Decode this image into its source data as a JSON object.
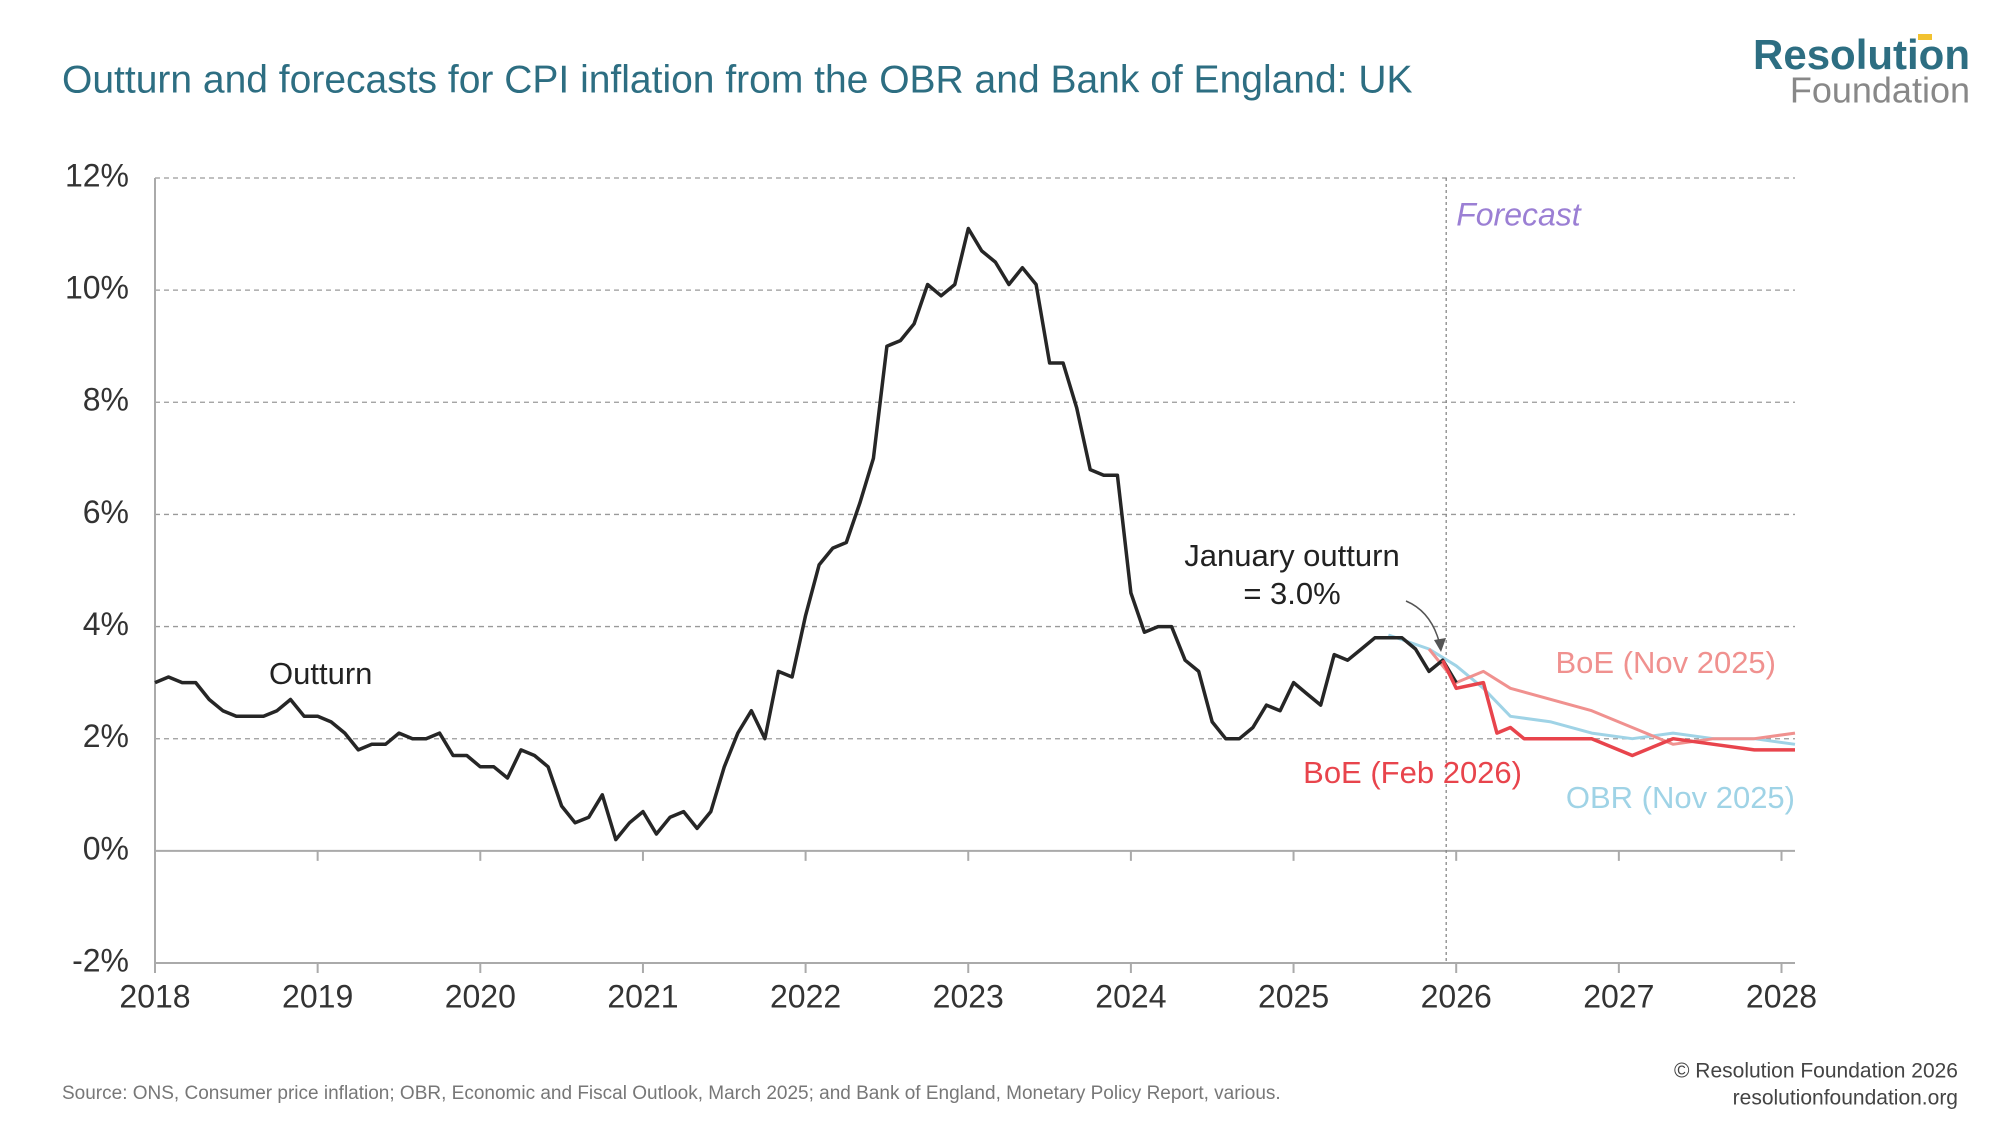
{
  "header": {
    "logo": [
      "Resolution",
      "Foundation"
    ]
  },
  "chart_data": {
    "type": "line",
    "title": "Outturn and forecasts for CPI inflation from the OBR and Bank of England: UK",
    "xlim": [
      2018,
      2028.083
    ],
    "xticks": [
      2018,
      2019,
      2020,
      2021,
      2022,
      2023,
      2024,
      2025,
      2026,
      2027,
      2028
    ],
    "ylim": [
      -2,
      12
    ],
    "yticks": [
      {
        "value": -2,
        "label": "-2%"
      },
      {
        "value": 0,
        "label": "0%"
      },
      {
        "value": 2,
        "label": "2%"
      },
      {
        "value": 4,
        "label": "4%"
      },
      {
        "value": 6,
        "label": "6%"
      },
      {
        "value": 8,
        "label": "8%"
      },
      {
        "value": 10,
        "label": "10%"
      },
      {
        "value": 12,
        "label": "12%"
      }
    ],
    "grid": true,
    "forecast_label": "Forecast",
    "annotation": [
      "January outturn",
      "= 3.0%"
    ],
    "series": [
      {
        "name": "Outturn",
        "color": "#262626",
        "x": [
          2018,
          2018.083,
          2018.167,
          2018.25,
          2018.333,
          2018.417,
          2018.5,
          2018.583,
          2018.667,
          2018.75,
          2018.833,
          2018.917,
          2019,
          2019.083,
          2019.167,
          2019.25,
          2019.333,
          2019.417,
          2019.5,
          2019.583,
          2019.667,
          2019.75,
          2019.833,
          2019.917,
          2020,
          2020.083,
          2020.167,
          2020.25,
          2020.333,
          2020.417,
          2020.5,
          2020.583,
          2020.667,
          2020.75,
          2020.833,
          2020.917,
          2021,
          2021.083,
          2021.167,
          2021.25,
          2021.333,
          2021.417,
          2021.5,
          2021.583,
          2021.667,
          2021.75,
          2021.833,
          2021.917,
          2022,
          2022.083,
          2022.167,
          2022.25,
          2022.333,
          2022.417,
          2022.5,
          2022.583,
          2022.667,
          2022.75,
          2022.833,
          2022.917,
          2023,
          2023.083,
          2023.167,
          2023.25,
          2023.333,
          2023.417,
          2023.5,
          2023.583,
          2023.667,
          2023.75,
          2023.833,
          2023.917,
          2024,
          2024.083,
          2024.167,
          2024.25,
          2024.333,
          2024.417,
          2024.5,
          2024.583,
          2024.667,
          2024.75,
          2024.833,
          2024.917,
          2025,
          2025.083,
          2025.167,
          2025.25,
          2025.333,
          2025.417,
          2025.5,
          2025.583,
          2025.667,
          2025.75,
          2025.833,
          2025.917,
          2026
        ],
        "values": [
          3.0,
          3.1,
          3.0,
          3.0,
          2.7,
          2.5,
          2.4,
          2.4,
          2.4,
          2.5,
          2.7,
          2.4,
          2.4,
          2.3,
          2.1,
          1.8,
          1.9,
          1.9,
          2.1,
          2.0,
          2.0,
          2.1,
          1.7,
          1.7,
          1.5,
          1.5,
          1.3,
          1.8,
          1.7,
          1.5,
          0.8,
          0.5,
          0.6,
          1.0,
          0.2,
          0.5,
          0.7,
          0.3,
          0.6,
          0.7,
          0.4,
          0.7,
          1.5,
          2.1,
          2.5,
          2.0,
          3.2,
          3.1,
          4.2,
          5.1,
          5.4,
          5.5,
          6.2,
          7.0,
          9.0,
          9.1,
          9.4,
          10.1,
          9.9,
          10.1,
          11.1,
          10.7,
          10.5,
          10.1,
          10.4,
          10.1,
          8.7,
          8.7,
          7.9,
          6.8,
          6.7,
          6.7,
          4.6,
          3.9,
          4.0,
          4.0,
          3.4,
          3.2,
          2.3,
          2.0,
          2.0,
          2.2,
          2.6,
          2.5,
          3.0,
          2.8,
          2.6,
          3.5,
          3.4,
          3.6,
          3.8,
          3.8,
          3.8,
          3.6,
          3.2,
          3.4,
          3.0
        ]
      },
      {
        "name": "OBR (Nov 2025)",
        "color": "#9fd3e6",
        "x": [
          2025.583,
          2025.833,
          2026,
          2026.167,
          2026.333,
          2026.583,
          2026.833,
          2027.083,
          2027.333,
          2027.583,
          2027.833,
          2028.083
        ],
        "values": [
          3.85,
          3.6,
          3.3,
          2.9,
          2.4,
          2.3,
          2.1,
          2.0,
          2.1,
          2.0,
          2.0,
          1.9
        ]
      },
      {
        "name": "BoE (Nov 2025)",
        "color": "#f0918f",
        "x": [
          2025.833,
          2026,
          2026.167,
          2026.333,
          2026.833,
          2027.083,
          2027.333,
          2027.583,
          2027.833,
          2028.083
        ],
        "values": [
          3.6,
          3.0,
          3.2,
          2.9,
          2.5,
          2.2,
          1.9,
          2.0,
          2.0,
          2.1
        ]
      },
      {
        "name": "BoE (Feb 2026)",
        "color": "#e8444c",
        "x": [
          2025.917,
          2026,
          2026.167,
          2026.25,
          2026.333,
          2026.417,
          2026.583,
          2026.833,
          2027.083,
          2027.333,
          2027.583,
          2027.833,
          2028.083
        ],
        "values": [
          3.4,
          2.9,
          3.0,
          2.1,
          2.2,
          2.0,
          2.0,
          2.0,
          1.7,
          2.0,
          1.9,
          1.8,
          1.8
        ]
      }
    ]
  },
  "footer": {
    "source": "Source: ONS, Consumer price inflation; OBR, Economic and Fiscal Outlook, March 2025; and Bank of England, Monetary Policy Report, various.",
    "copyright": "© Resolution Foundation 2026",
    "url": "resolutionfoundation.org"
  }
}
